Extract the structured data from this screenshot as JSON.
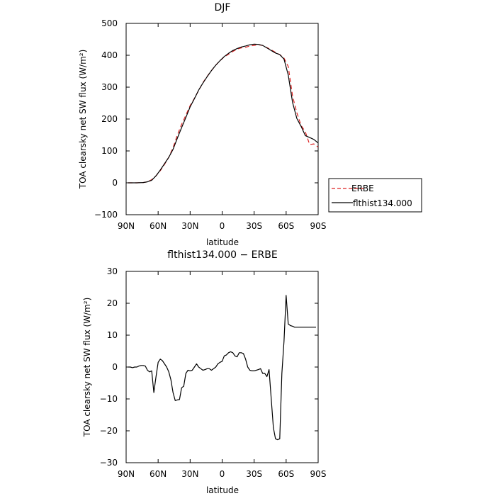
{
  "chart_data": [
    {
      "type": "line",
      "title": "DJF",
      "xlabel": "latitude",
      "ylabel": "TOA clearsky net SW flux (W/m²)",
      "xlim": [
        -90,
        90
      ],
      "ylim": [
        -100,
        500
      ],
      "xticks": [
        -90,
        -60,
        -30,
        0,
        30,
        60,
        90
      ],
      "xtick_labels": [
        "90N",
        "60N",
        "30N",
        "0",
        "30S",
        "60S",
        "90S"
      ],
      "yticks": [
        -100,
        0,
        100,
        200,
        300,
        400,
        500
      ],
      "ytick_labels": [
        "−100",
        "0",
        "100",
        "200",
        "300",
        "400",
        "500"
      ],
      "legend": "outside-right",
      "series": [
        {
          "name": "ERBE",
          "color": "#dd2222",
          "dash": "dashed",
          "x": [
            -88,
            -80,
            -74,
            -70,
            -66,
            -62,
            -58,
            -54,
            -50,
            -46,
            -42,
            -38,
            -34,
            -30,
            -26,
            -22,
            -18,
            -14,
            -10,
            -6,
            -2,
            2,
            6,
            10,
            14,
            18,
            22,
            26,
            30,
            34,
            38,
            42,
            46,
            50,
            54,
            58,
            62,
            66,
            70,
            74,
            78,
            82,
            86,
            90
          ],
          "y": [
            0,
            0,
            1,
            3,
            10,
            22,
            38,
            58,
            80,
            110,
            150,
            183,
            212,
            242,
            265,
            290,
            314,
            334,
            352,
            369,
            383,
            395,
            403,
            412,
            419,
            423,
            425,
            429,
            431,
            433,
            431,
            424,
            417,
            409,
            402,
            391,
            365,
            272,
            220,
            180,
            160,
            120,
            122,
            112
          ]
        },
        {
          "name": "flthist134.000",
          "color": "#000000",
          "dash": "solid",
          "x": [
            -88,
            -80,
            -74,
            -70,
            -66,
            -62,
            -58,
            -54,
            -50,
            -46,
            -42,
            -38,
            -34,
            -30,
            -26,
            -22,
            -18,
            -14,
            -10,
            -6,
            -2,
            2,
            6,
            10,
            14,
            18,
            22,
            26,
            30,
            34,
            38,
            42,
            46,
            50,
            54,
            58,
            62,
            66,
            70,
            74,
            78,
            82,
            86,
            90
          ],
          "y": [
            0,
            0,
            1,
            3,
            8,
            22,
            40,
            60,
            80,
            105,
            140,
            173,
            205,
            238,
            264,
            291,
            313,
            333,
            352,
            369,
            383,
            396,
            406,
            415,
            421,
            426,
            429,
            433,
            435,
            434,
            431,
            423,
            415,
            407,
            402,
            388,
            338,
            252,
            202,
            177,
            148,
            142,
            136,
            125
          ]
        }
      ]
    },
    {
      "type": "line",
      "title": "flthist134.000 − ERBE",
      "xlabel": "latitude",
      "ylabel": "TOA clearsky net SW flux (W/m²)",
      "xlim": [
        -90,
        90
      ],
      "ylim": [
        -30,
        30
      ],
      "xticks": [
        -90,
        -60,
        -30,
        0,
        30,
        60,
        90
      ],
      "xtick_labels": [
        "90N",
        "60N",
        "30N",
        "0",
        "30S",
        "60S",
        "90S"
      ],
      "yticks": [
        -30,
        -20,
        -10,
        0,
        10,
        20,
        30
      ],
      "ytick_labels": [
        "−30",
        "−20",
        "−10",
        "0",
        "10",
        "20",
        "30"
      ],
      "series": [
        {
          "color": "#000000",
          "dash": "solid",
          "x": [
            -88,
            -86,
            -84,
            -82,
            -80,
            -78,
            -76,
            -74,
            -72,
            -70,
            -68,
            -66,
            -64,
            -62,
            -60,
            -58,
            -56,
            -54,
            -52,
            -50,
            -48,
            -46,
            -44,
            -42,
            -40,
            -38,
            -36,
            -34,
            -32,
            -30,
            -28,
            -26,
            -24,
            -22,
            -20,
            -18,
            -16,
            -14,
            -12,
            -10,
            -8,
            -6,
            -4,
            -2,
            0,
            2,
            4,
            6,
            8,
            10,
            12,
            14,
            16,
            18,
            20,
            22,
            24,
            26,
            28,
            30,
            32,
            34,
            36,
            38,
            40,
            42,
            44,
            46,
            48,
            50,
            52,
            54,
            56,
            58,
            60,
            62,
            64,
            66,
            68,
            70,
            72,
            74,
            76,
            78,
            80,
            82,
            84,
            86,
            88
          ],
          "y": [
            0,
            0,
            -0.2,
            0,
            0,
            0.3,
            0.5,
            0.5,
            0.3,
            -1,
            -1.5,
            -1.2,
            -8,
            -3,
            1.5,
            2.5,
            2,
            1,
            0,
            -1.5,
            -4,
            -8,
            -10.5,
            -10.3,
            -10.2,
            -6.5,
            -6,
            -2,
            -1,
            -1.2,
            -1,
            0,
            1,
            0,
            -0.5,
            -1,
            -0.8,
            -0.5,
            -0.5,
            -1,
            -0.5,
            0,
            1,
            1.5,
            1.8,
            3.5,
            3.8,
            4.5,
            4.8,
            4.5,
            3.5,
            3.2,
            4.5,
            4.5,
            4.2,
            2.5,
            0,
            -1,
            -1.2,
            -1.2,
            -1,
            -0.8,
            -0.5,
            -2,
            -2,
            -3,
            -0.8,
            -10,
            -19,
            -22.5,
            -22.8,
            -22.5,
            -2,
            8,
            22.5,
            13.5,
            13,
            12.8,
            12.5,
            12.5,
            12.5,
            12.5,
            12.5,
            12.5,
            12.5,
            12.5,
            12.5,
            12.5,
            12.5
          ]
        }
      ]
    }
  ]
}
